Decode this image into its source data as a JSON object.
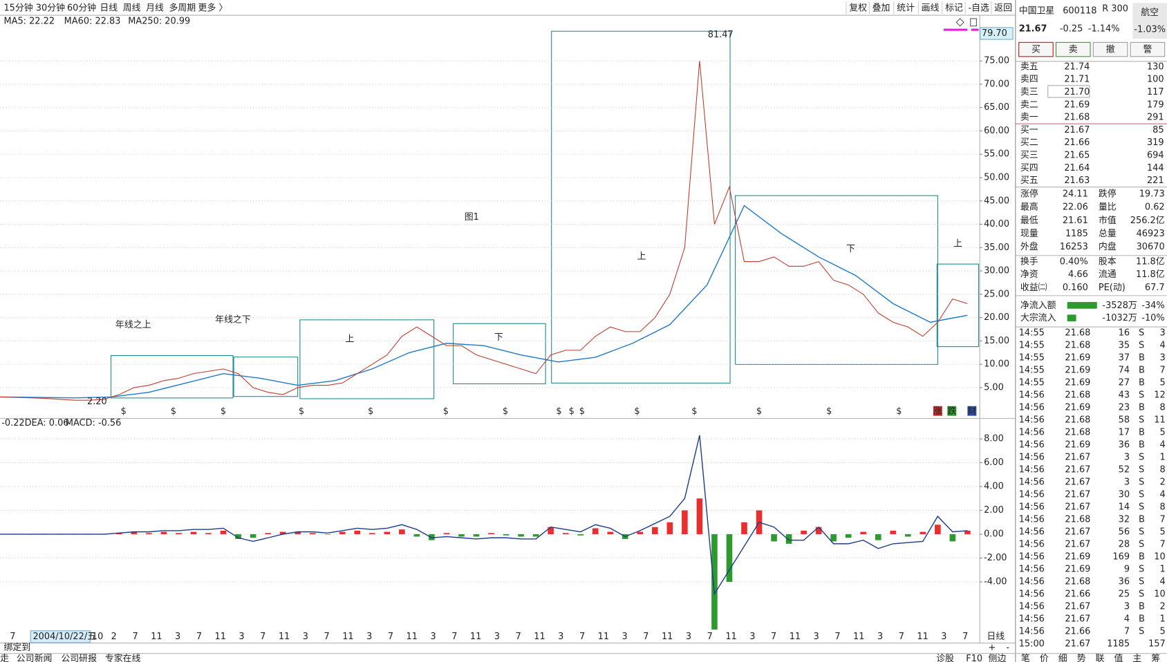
{
  "toolbar": {
    "periods": [
      "15分钟",
      "30分钟",
      "60分钟",
      "日线",
      "周线",
      "月线",
      "多周期",
      "更多 〉"
    ],
    "active": 3,
    "tools": [
      "复权",
      "叠加",
      "统计",
      "画线",
      "标记",
      "-自选",
      "返回"
    ]
  },
  "ma_legend": [
    {
      "text": "MA5: 22.22",
      "color": "#222222"
    },
    {
      "text": "MA60: 22.83",
      "color": "#888888"
    },
    {
      "text": "MA250: 20.99",
      "color": "#1e78c8"
    }
  ],
  "price_chart": {
    "ylim": [
      -1.2,
      82
    ],
    "yticks": [
      {
        "value": 5,
        "label": "5.00"
      },
      {
        "value": 10,
        "label": "10.00"
      },
      {
        "value": 15,
        "label": "15.00"
      },
      {
        "value": 20,
        "label": "20.00"
      },
      {
        "value": 25,
        "label": "25.00"
      },
      {
        "value": 30,
        "label": "30.00"
      },
      {
        "value": 35,
        "label": "35.00"
      },
      {
        "value": 40,
        "label": "40.00"
      },
      {
        "value": 45,
        "label": "45.00"
      },
      {
        "value": 50,
        "label": "50.00"
      },
      {
        "value": 55,
        "label": "55.00"
      },
      {
        "value": 60,
        "label": "60.00"
      },
      {
        "value": 65,
        "label": "65.00"
      },
      {
        "value": 70,
        "label": "70.00"
      },
      {
        "value": 75,
        "label": "75.00"
      }
    ],
    "grid": true,
    "close": [
      3.0,
      2.9,
      2.8,
      2.7,
      2.5,
      2.3,
      2.3,
      2.5,
      3.5,
      5,
      5.5,
      6.5,
      7,
      8,
      8.5,
      9,
      8,
      5,
      4,
      3.5,
      5,
      5.5,
      5.5,
      6,
      8,
      10,
      12,
      16,
      18,
      16,
      14,
      14,
      12,
      11,
      10,
      9,
      8,
      12,
      13,
      13,
      16,
      18,
      17,
      17,
      20,
      25,
      35,
      75,
      40,
      48,
      32,
      32,
      33,
      31,
      31,
      32,
      28,
      27,
      25,
      21,
      19,
      18,
      16,
      19,
      24,
      23
    ],
    "close_color": "#c0392b",
    "ma250": [
      3.0,
      2.9,
      2.8,
      3.0,
      4.0,
      6.0,
      8.0,
      7.0,
      5.5,
      6.5,
      9.0,
      12.5,
      14.5,
      14.0,
      12.0,
      10.5,
      11.5,
      14.5,
      18.5,
      27,
      44,
      38,
      33,
      29,
      23,
      19,
      20.5
    ],
    "ma250_color": "#1e78c8",
    "high_label": "81.47",
    "low_label": "2.20",
    "last_label": "79.70",
    "event_marker": "$",
    "event_icons": [
      "涨",
      "跌",
      "财"
    ],
    "annotations": [
      "图1",
      "年线之上",
      "年线之下",
      "上",
      "下",
      "上",
      "下",
      "上"
    ]
  },
  "macd_chart": {
    "legend": [
      {
        "text": "-0.22",
        "color": "#222222"
      },
      {
        "text": "DEA: 0.06",
        "color": "#1e78c8"
      },
      {
        "text": "MACD: -0.56",
        "color": "#8a2be2"
      }
    ],
    "ylim": [
      -8.1,
      8.75
    ],
    "yticks": [
      {
        "value": 8,
        "label": "8.00"
      },
      {
        "value": 6,
        "label": "6.00"
      },
      {
        "value": 4,
        "label": "4.00"
      },
      {
        "value": 2,
        "label": "2.00"
      },
      {
        "value": 0,
        "label": "0.00"
      },
      {
        "value": -2,
        "label": "-2.00"
      },
      {
        "value": -4,
        "label": "-4.00"
      }
    ],
    "dif": [
      0,
      0,
      0,
      0,
      0,
      0,
      0,
      0,
      0.1,
      0.2,
      0.2,
      0.3,
      0.3,
      0.4,
      0.4,
      0.5,
      -0.3,
      -0.6,
      -0.3,
      0,
      0.2,
      0.2,
      0.1,
      0.3,
      0.5,
      0.4,
      0.5,
      0.8,
      0.4,
      -0.3,
      -0.2,
      -0.3,
      -0.4,
      -0.3,
      -0.3,
      -0.4,
      -0.4,
      0.6,
      0.4,
      0.2,
      0.8,
      0.5,
      -0.2,
      0.3,
      0.9,
      1.5,
      3,
      8.3,
      -5,
      -3,
      -1,
      1,
      0.6,
      -0.5,
      -0.5,
      0.6,
      -0.8,
      -0.8,
      -0.5,
      -1.2,
      -0.8,
      -0.7,
      -0.6,
      1.5,
      0.2,
      0.3
    ],
    "macd": [
      0,
      0,
      0,
      0,
      0,
      0,
      0,
      0,
      0.1,
      0.2,
      0.1,
      0.2,
      0.1,
      0.2,
      0.1,
      0.3,
      -0.4,
      -0.3,
      0.1,
      0.2,
      0.2,
      0.1,
      0,
      0.2,
      0.3,
      0.1,
      0.2,
      0.4,
      -0.2,
      -0.5,
      0.1,
      -0.2,
      -0.2,
      0.1,
      -0.1,
      -0.2,
      -0.2,
      0.6,
      0.1,
      -0.1,
      0.5,
      0.2,
      -0.4,
      0.2,
      0.6,
      1,
      2,
      3,
      -8,
      -4,
      1,
      2,
      -0.6,
      -0.8,
      0.3,
      0.6,
      -0.6,
      -0.3,
      0.2,
      -0.5,
      0.3,
      -0.2,
      0.2,
      0.8,
      -0.6,
      0.3
    ]
  },
  "x_axis": {
    "labels": [
      "7",
      "2004/10/22/五",
      "10",
      "2",
      "7",
      "11",
      "3",
      "7",
      "11",
      "3",
      "7",
      "11",
      "3",
      "7",
      "11",
      "3",
      "7",
      "11",
      "3",
      "7",
      "11",
      "3",
      "7",
      "11",
      "3",
      "7",
      "11",
      "3",
      "7",
      "11",
      "3",
      "7",
      "11",
      "3",
      "7",
      "11",
      "3",
      "7",
      "11",
      "3",
      "7",
      "11",
      "3",
      "7"
    ],
    "period": "日线"
  },
  "quote": {
    "name": "中国卫星",
    "code": "600118",
    "badge": "R 300",
    "sector": "航空",
    "price": "21.67",
    "change": "-0.25",
    "change_pct": "-1.14%",
    "sector_change": "-1.03%"
  },
  "buttons": [
    "买",
    "卖",
    "撤",
    "警"
  ],
  "order_book": {
    "sell": [
      [
        "卖五",
        "21.74",
        "130"
      ],
      [
        "卖四",
        "21.71",
        "100"
      ],
      [
        "卖三",
        "21.70",
        "117"
      ],
      [
        "卖二",
        "21.69",
        "179"
      ],
      [
        "卖一",
        "21.68",
        "291"
      ]
    ],
    "buy": [
      [
        "买一",
        "21.67",
        "85"
      ],
      [
        "买二",
        "21.66",
        "319"
      ],
      [
        "买三",
        "21.65",
        "694"
      ],
      [
        "买四",
        "21.64",
        "144"
      ],
      [
        "买五",
        "21.63",
        "221"
      ]
    ]
  },
  "stats": [
    [
      {
        "label": "涨停",
        "value": "24.11",
        "color": "#e00000"
      },
      {
        "label": "跌停",
        "value": "19.73",
        "color": "#008a00"
      }
    ],
    [
      {
        "label": "最高",
        "value": "22.06",
        "color": "#e00000"
      },
      {
        "label": "量比",
        "value": "0.62",
        "color": "#008a00"
      }
    ],
    [
      {
        "label": "最低",
        "value": "21.61",
        "color": "#008a00"
      },
      {
        "label": "市值",
        "value": "256.2亿",
        "color": "#222222"
      }
    ],
    [
      {
        "label": "现量",
        "value": "1185",
        "color": "#9b30c0"
      },
      {
        "label": "总量",
        "value": "46923",
        "color": "#222222"
      }
    ],
    [
      {
        "label": "外盘",
        "value": "16253",
        "color": "#e00000"
      },
      {
        "label": "内盘",
        "value": "30670",
        "color": "#008a00"
      }
    ],
    [
      {
        "label": "换手",
        "value": "0.40%",
        "color": "#222222"
      },
      {
        "label": "股本",
        "value": "11.8亿",
        "color": "#222222"
      }
    ],
    [
      {
        "label": "净资",
        "value": "4.66",
        "color": "#222222"
      },
      {
        "label": "流通",
        "value": "11.8亿",
        "color": "#222222"
      }
    ],
    [
      {
        "label": "收益㈡",
        "value": "0.160",
        "color": "#222222"
      },
      {
        "label": "PE(动)",
        "value": "67.7",
        "color": "#222222"
      }
    ]
  ],
  "flows": [
    {
      "label": "净流入额",
      "amount": "-3528万",
      "pct": "-34%"
    },
    {
      "label": "大宗流入",
      "amount": "-1032万",
      "pct": "-10%"
    }
  ],
  "ticks": [
    [
      "14:55",
      "21.68",
      "16",
      "S",
      "3"
    ],
    [
      "14:55",
      "21.68",
      "35",
      "S",
      "4"
    ],
    [
      "14:55",
      "21.69",
      "37",
      "B",
      "3"
    ],
    [
      "14:55",
      "21.69",
      "74",
      "B",
      "7"
    ],
    [
      "14:55",
      "21.69",
      "27",
      "B",
      "5"
    ],
    [
      "14:56",
      "21.68",
      "43",
      "S",
      "12"
    ],
    [
      "14:56",
      "21.69",
      "23",
      "B",
      "8"
    ],
    [
      "14:56",
      "21.68",
      "58",
      "S",
      "11"
    ],
    [
      "14:56",
      "21.68",
      "17",
      "B",
      "5"
    ],
    [
      "14:56",
      "21.69",
      "36",
      "B",
      "4"
    ],
    [
      "14:56",
      "21.67",
      "3",
      "S",
      "1"
    ],
    [
      "14:56",
      "21.67",
      "52",
      "S",
      "8"
    ],
    [
      "14:56",
      "21.67",
      "3",
      "S",
      "2"
    ],
    [
      "14:56",
      "21.67",
      "30",
      "S",
      "4"
    ],
    [
      "14:56",
      "21.67",
      "14",
      "S",
      "8"
    ],
    [
      "14:56",
      "21.68",
      "32",
      "B",
      "7"
    ],
    [
      "14:56",
      "21.67",
      "56",
      "S",
      "5"
    ],
    [
      "14:56",
      "21.67",
      "28",
      "S",
      "7"
    ],
    [
      "14:56",
      "21.69",
      "169",
      "B",
      "10"
    ],
    [
      "14:56",
      "21.69",
      "9",
      "S",
      "1"
    ],
    [
      "14:56",
      "21.68",
      "36",
      "S",
      "4"
    ],
    [
      "14:56",
      "21.66",
      "25",
      "S",
      "10"
    ],
    [
      "14:56",
      "21.67",
      "3",
      "B",
      "2"
    ],
    [
      "14:56",
      "21.67",
      "4",
      "B",
      "1"
    ],
    [
      "14:56",
      "21.66",
      "7",
      "S",
      "5"
    ],
    [
      "15:00",
      "21.67",
      "1185",
      "157"
    ]
  ],
  "footer": {
    "bind_label": "绑定到",
    "zoom": [
      "+",
      "-"
    ],
    "tabs": [
      "走",
      "公司新闻",
      "公司研报",
      "专家在线"
    ],
    "right_links": [
      "诊股",
      "F10",
      "侧边"
    ],
    "panel_tabs": [
      "笔",
      "价",
      "细",
      "势",
      "联",
      "值",
      "主",
      "筹"
    ]
  }
}
